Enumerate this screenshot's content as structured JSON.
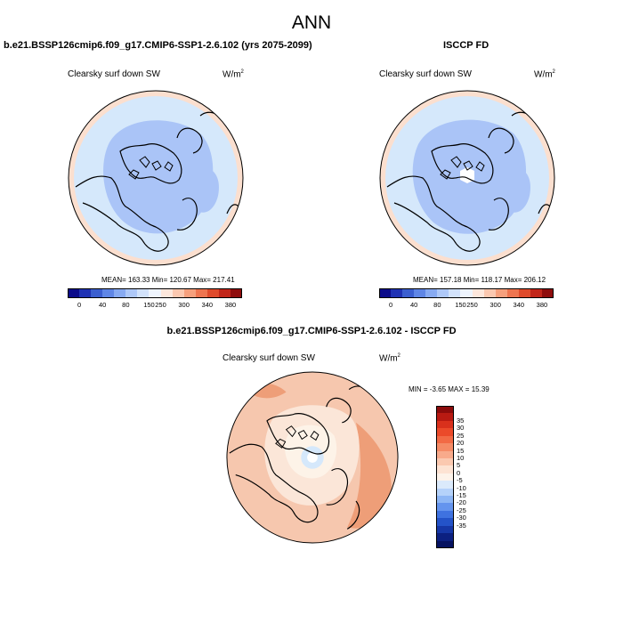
{
  "title": "ANN",
  "colors": {
    "ocean_light": "#d5e8fb",
    "ocean_mid": "#aac4f7",
    "ring": "#fbdfcf",
    "diff_bg": "#f6c7ae",
    "diff_deep": "#ee9e78",
    "diff_light": "#fbe6d8",
    "diff_pale": "#fdf3e8",
    "pole": "#ffffff"
  },
  "panels": {
    "case": {
      "title": "b.e21.BSSP126cmip6.f09_g17.CMIP6-SSP1-2.6.102 (yrs 2075-2099)",
      "variable": "Clearsky surf down SW",
      "units_base": "W/m",
      "units_exp": "2",
      "stats": "MEAN= 163.33  Min= 120.67  Max= 217.41"
    },
    "obs": {
      "title": "ISCCP FD",
      "variable": "Clearsky surf down SW",
      "units_base": "W/m",
      "units_exp": "2",
      "stats": "MEAN= 157.18  Min= 118.17  Max= 206.12"
    },
    "diff": {
      "title": "b.e21.BSSP126cmip6.f09_g17.CMIP6-SSP1-2.6.102 - ISCCP FD",
      "variable": "Clearsky surf down SW",
      "units_base": "W/m",
      "units_exp": "2",
      "stats": "MIN =  -3.65 MAX =  15.39"
    }
  },
  "chart_data": [
    {
      "type": "heatmap",
      "title": "b.e21.BSSP126cmip6.f09_g17.CMIP6-SSP1-2.6.102 (yrs 2075-2099)",
      "variable": "Clearsky surf down SW",
      "units": "W/m2",
      "projection": "polar stereographic (Arctic)",
      "mean": 163.33,
      "min": 120.67,
      "max": 217.41,
      "colorbar": {
        "orientation": "horizontal",
        "tick_labels": [
          "0",
          "40",
          "80",
          "150",
          "250",
          "300",
          "340",
          "380"
        ],
        "colors": [
          "#0b0b8a",
          "#1f32b4",
          "#3b5fd0",
          "#5f86e6",
          "#87aaf2",
          "#aec8f8",
          "#d2e2fb",
          "#eef4fd",
          "#fde7dc",
          "#fbc8b0",
          "#f6a07d",
          "#ee7550",
          "#df4b2c",
          "#c2261a",
          "#8f0d0d"
        ]
      }
    },
    {
      "type": "heatmap",
      "title": "ISCCP FD",
      "variable": "Clearsky surf down SW",
      "units": "W/m2",
      "projection": "polar stereographic (Arctic)",
      "mean": 157.18,
      "min": 118.17,
      "max": 206.12,
      "colorbar": {
        "orientation": "horizontal",
        "tick_labels": [
          "0",
          "40",
          "80",
          "150",
          "250",
          "300",
          "340",
          "380"
        ],
        "colors": [
          "#0b0b8a",
          "#1f32b4",
          "#3b5fd0",
          "#5f86e6",
          "#87aaf2",
          "#aec8f8",
          "#d2e2fb",
          "#eef4fd",
          "#fde7dc",
          "#fbc8b0",
          "#f6a07d",
          "#ee7550",
          "#df4b2c",
          "#c2261a",
          "#8f0d0d"
        ]
      }
    },
    {
      "type": "heatmap",
      "title": "b.e21.BSSP126cmip6.f09_g17.CMIP6-SSP1-2.6.102 - ISCCP FD",
      "variable": "Clearsky surf down SW",
      "units": "W/m2",
      "projection": "polar stereographic (Arctic)",
      "min": -3.65,
      "max": 15.39,
      "colorbar": {
        "orientation": "vertical",
        "tick_labels": [
          "35",
          "30",
          "25",
          "20",
          "15",
          "10",
          "5",
          "0",
          "-5",
          "-10",
          "-15",
          "-20",
          "-25",
          "-30",
          "-35"
        ],
        "colors": [
          "#8b0b0b",
          "#b81a12",
          "#d9301c",
          "#eb4a2a",
          "#f26a45",
          "#f58b66",
          "#f8aa8b",
          "#fbc9b0",
          "#fde3d3",
          "#fdf3ea",
          "#dbeafb",
          "#b5d2fa",
          "#8db6f5",
          "#6494ee",
          "#3f72e0",
          "#2453c8",
          "#1637a6",
          "#0c2080",
          "#061260"
        ]
      }
    }
  ]
}
